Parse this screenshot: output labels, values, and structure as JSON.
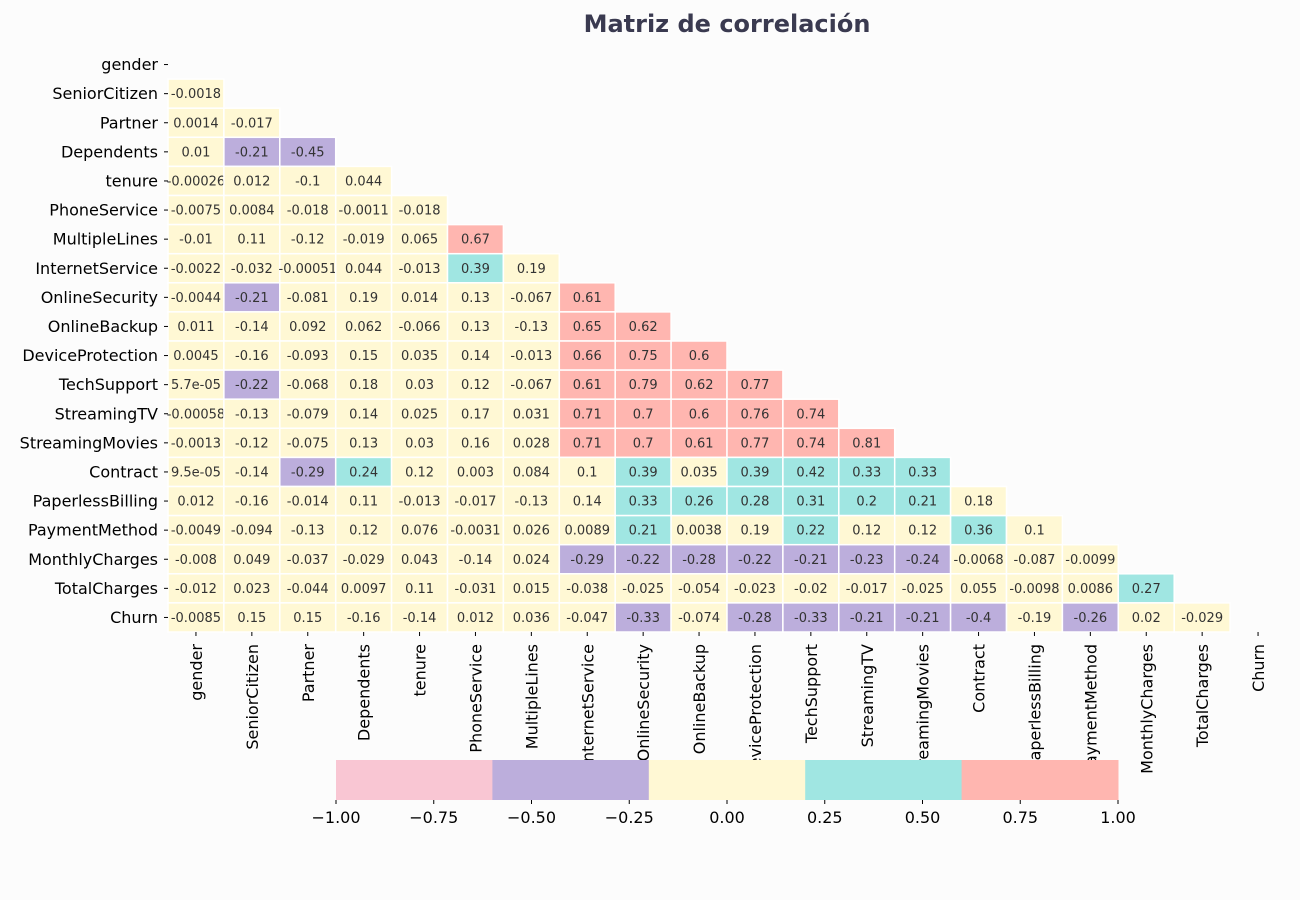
{
  "chart_data": {
    "type": "heatmap",
    "title": "Matriz de correlación",
    "labels": [
      "gender",
      "SeniorCitizen",
      "Partner",
      "Dependents",
      "tenure",
      "PhoneService",
      "MultipleLines",
      "InternetService",
      "OnlineSecurity",
      "OnlineBackup",
      "DeviceProtection",
      "TechSupport",
      "StreamingTV",
      "StreamingMovies",
      "Contract",
      "PaperlessBilling",
      "PaymentMethod",
      "MonthlyCharges",
      "TotalCharges",
      "Churn"
    ],
    "matrix_lower_triangle": [
      [],
      [
        "-0.0018"
      ],
      [
        "0.0014",
        "-0.017"
      ],
      [
        "0.01",
        "-0.21",
        "-0.45"
      ],
      [
        "-0.00026",
        "0.012",
        "-0.1",
        "0.044"
      ],
      [
        "-0.0075",
        "0.0084",
        "-0.018",
        "-0.0011",
        "-0.018"
      ],
      [
        "-0.01",
        "0.11",
        "-0.12",
        "-0.019",
        "0.065",
        "0.67"
      ],
      [
        "-0.0022",
        "-0.032",
        "-0.00051",
        "0.044",
        "-0.013",
        "0.39",
        "0.19"
      ],
      [
        "-0.0044",
        "-0.21",
        "-0.081",
        "0.19",
        "0.014",
        "0.13",
        "-0.067",
        "0.61"
      ],
      [
        "0.011",
        "-0.14",
        "0.092",
        "0.062",
        "-0.066",
        "0.13",
        "-0.13",
        "0.65",
        "0.62"
      ],
      [
        "0.0045",
        "-0.16",
        "-0.093",
        "0.15",
        "0.035",
        "0.14",
        "-0.013",
        "0.66",
        "0.75",
        "0.6"
      ],
      [
        "5.7e-05",
        "-0.22",
        "-0.068",
        "0.18",
        "0.03",
        "0.12",
        "-0.067",
        "0.61",
        "0.79",
        "0.62",
        "0.77"
      ],
      [
        "-0.00058",
        "-0.13",
        "-0.079",
        "0.14",
        "0.025",
        "0.17",
        "0.031",
        "0.71",
        "0.7",
        "0.6",
        "0.76",
        "0.74"
      ],
      [
        "-0.0013",
        "-0.12",
        "-0.075",
        "0.13",
        "0.03",
        "0.16",
        "0.028",
        "0.71",
        "0.7",
        "0.61",
        "0.77",
        "0.74",
        "0.81"
      ],
      [
        "9.5e-05",
        "-0.14",
        "-0.29",
        "0.24",
        "0.12",
        "0.003",
        "0.084",
        "0.1",
        "0.39",
        "0.035",
        "0.39",
        "0.42",
        "0.33",
        "0.33"
      ],
      [
        "0.012",
        "-0.16",
        "-0.014",
        "0.11",
        "-0.013",
        "-0.017",
        "-0.13",
        "0.14",
        "0.33",
        "0.26",
        "0.28",
        "0.31",
        "0.2",
        "0.21",
        "0.18"
      ],
      [
        "-0.0049",
        "-0.094",
        "-0.13",
        "0.12",
        "0.076",
        "-0.0031",
        "0.026",
        "0.0089",
        "0.21",
        "0.0038",
        "0.19",
        "0.22",
        "0.12",
        "0.12",
        "0.36",
        "0.1"
      ],
      [
        "-0.008",
        "0.049",
        "-0.037",
        "-0.029",
        "0.043",
        "-0.14",
        "0.024",
        "-0.29",
        "-0.22",
        "-0.28",
        "-0.22",
        "-0.21",
        "-0.23",
        "-0.24",
        "-0.0068",
        "-0.087",
        "-0.0099"
      ],
      [
        "-0.012",
        "0.023",
        "-0.044",
        "0.0097",
        "0.11",
        "-0.031",
        "0.015",
        "-0.038",
        "-0.025",
        "-0.054",
        "-0.023",
        "-0.02",
        "-0.017",
        "-0.025",
        "0.055",
        "-0.0098",
        "0.0086",
        "0.27"
      ],
      [
        "-0.0085",
        "0.15",
        "0.15",
        "-0.16",
        "-0.14",
        "0.012",
        "0.036",
        "-0.047",
        "-0.33",
        "-0.074",
        "-0.28",
        "-0.33",
        "-0.21",
        "-0.21",
        "-0.4",
        "-0.19",
        "-0.26",
        "0.02",
        "-0.029"
      ]
    ],
    "colorbar": {
      "range": [
        -1.0,
        1.0
      ],
      "ticks": [
        "−1.00",
        "−0.75",
        "−0.50",
        "−0.25",
        "0.00",
        "0.25",
        "0.50",
        "0.75",
        "1.00"
      ],
      "bins": [
        {
          "from": -1.0,
          "to": -0.6,
          "color": "#f9c6d3"
        },
        {
          "from": -0.6,
          "to": -0.2,
          "color": "#bcaedc"
        },
        {
          "from": -0.2,
          "to": 0.2,
          "color": "#fff8d4"
        },
        {
          "from": 0.2,
          "to": 0.6,
          "color": "#a0e6e2"
        },
        {
          "from": 0.6,
          "to": 1.0,
          "color": "#ffb6b0"
        }
      ]
    },
    "colors": {
      "cell_border": "#ffffff",
      "cell_text": "#333333",
      "title": "#3a3a50",
      "background": "#fcfcfc"
    }
  }
}
